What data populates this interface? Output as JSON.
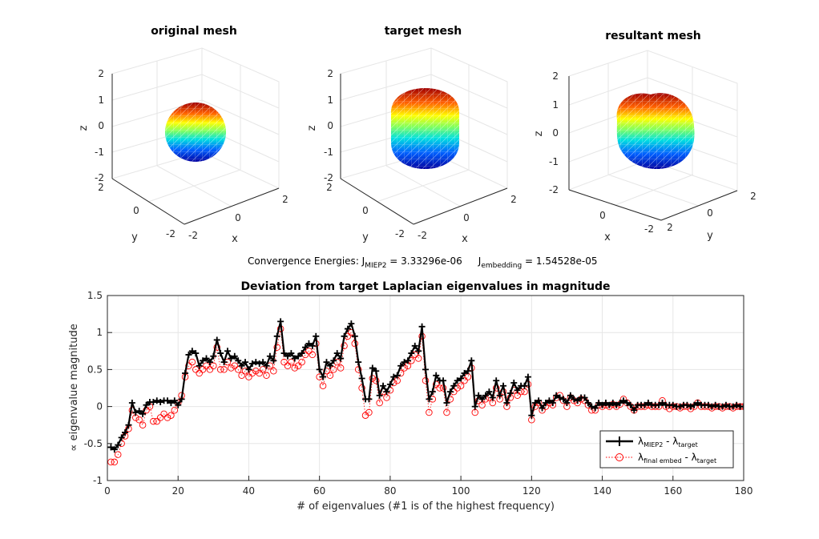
{
  "panels3d": [
    {
      "title": "original mesh",
      "z_ticks": [
        "2",
        "1",
        "0",
        "-1",
        "-2"
      ],
      "y_ticks": [
        "2",
        "0",
        "-2"
      ],
      "x_ticks": [
        "-2",
        "0",
        "2"
      ],
      "xlabel": "x",
      "ylabel": "y",
      "zlabel": "z"
    },
    {
      "title": "target mesh",
      "z_ticks": [
        "2",
        "1",
        "0",
        "-1",
        "-2"
      ],
      "y_ticks": [
        "2",
        "0",
        "-2"
      ],
      "x_ticks": [
        "-2",
        "0",
        "2"
      ],
      "xlabel": "x",
      "ylabel": "y",
      "zlabel": "z"
    },
    {
      "title": "resultant mesh",
      "z_ticks": [
        "2",
        "1",
        "0",
        "-1",
        "-2"
      ],
      "x_ticks": [
        "0",
        "2"
      ],
      "y_ticks": [
        "-2",
        "0",
        "2"
      ],
      "xlabel": "x",
      "ylabel": "y",
      "zlabel": "z"
    }
  ],
  "energy": {
    "prefix": "Convergence Energies: J",
    "sub1": "MIEP2",
    "val1": " = 3.33296e-06",
    "j2": "J",
    "sub2": "embedding",
    "val2": " = 1.54528e-05"
  },
  "chart_data": {
    "type": "line",
    "title": "Deviation from target Laplacian eigenvalues in magnitude",
    "xlabel": "# of eigenvalues (#1 is of the highest frequency)",
    "ylabel": "∝ eigenvalue magnitude",
    "xlim": [
      0,
      180
    ],
    "ylim": [
      -1,
      1.5
    ],
    "x_ticks": [
      0,
      20,
      40,
      60,
      80,
      100,
      120,
      140,
      160,
      180
    ],
    "y_ticks": [
      -1,
      -0.5,
      0,
      0.5,
      1,
      1.5
    ],
    "y_tick_labels": [
      "-1",
      "-0.5",
      "0",
      "0.5",
      "1",
      "1.5"
    ],
    "grid": true,
    "legend_position": "bottom-right",
    "legend": {
      "l1_sym": "λ",
      "l1_sub": "MIEP2",
      "l1_mid": " - λ",
      "l1_sub2": "target",
      "l2_sym": "λ",
      "l2_sub": "final embed",
      "l2_mid": " - λ",
      "l2_sub2": "target"
    },
    "series": [
      {
        "name": "MIEP2 - target",
        "color": "#000000",
        "values": [
          -0.55,
          -0.58,
          -0.52,
          -0.42,
          -0.35,
          -0.25,
          0.05,
          -0.08,
          -0.06,
          -0.1,
          0.02,
          0.06,
          0.06,
          0.08,
          0.06,
          0.08,
          0.08,
          0.05,
          0.08,
          0.02,
          0.1,
          0.45,
          0.7,
          0.75,
          0.72,
          0.55,
          0.62,
          0.65,
          0.6,
          0.68,
          0.9,
          0.72,
          0.6,
          0.75,
          0.65,
          0.68,
          0.62,
          0.55,
          0.6,
          0.5,
          0.58,
          0.6,
          0.58,
          0.6,
          0.55,
          0.68,
          0.62,
          0.95,
          1.15,
          0.72,
          0.68,
          0.72,
          0.65,
          0.68,
          0.72,
          0.8,
          0.85,
          0.82,
          0.95,
          0.5,
          0.4,
          0.6,
          0.55,
          0.62,
          0.72,
          0.65,
          0.95,
          1.05,
          1.12,
          0.95,
          0.6,
          0.38,
          0.1,
          0.1,
          0.52,
          0.48,
          0.15,
          0.28,
          0.2,
          0.3,
          0.4,
          0.42,
          0.55,
          0.6,
          0.62,
          0.72,
          0.82,
          0.75,
          1.08,
          0.5,
          0.1,
          0.2,
          0.42,
          0.35,
          0.35,
          0.05,
          0.2,
          0.28,
          0.35,
          0.38,
          0.45,
          0.48,
          0.62,
          0.0,
          0.15,
          0.1,
          0.15,
          0.2,
          0.12,
          0.35,
          0.15,
          0.28,
          0.05,
          0.18,
          0.32,
          0.22,
          0.28,
          0.28,
          0.4,
          -0.12,
          0.05,
          0.08,
          -0.02,
          0.05,
          0.08,
          0.05,
          0.15,
          0.12,
          0.1,
          0.05,
          0.15,
          0.1,
          0.08,
          0.12,
          0.12,
          0.05,
          0.0,
          -0.02,
          0.05,
          0.02,
          0.05,
          0.02,
          0.05,
          0.02,
          0.05,
          0.08,
          0.05,
          0.02,
          -0.05,
          0.02,
          0.02,
          0.02,
          0.05,
          0.02,
          0.02,
          0.02,
          0.05,
          0.02,
          0.02,
          0.02,
          0.0,
          0.0,
          0.02,
          0.02,
          0.0,
          0.02,
          0.05,
          0.02,
          0.02,
          0.02,
          0.0,
          0.02,
          0.0,
          0.0,
          0.02,
          0.0,
          0.0,
          0.02,
          0.0,
          0.0,
          0.0
        ]
      },
      {
        "name": "final embed - target",
        "color": "#ff0000",
        "values": [
          -0.75,
          -0.75,
          -0.65,
          -0.5,
          -0.4,
          -0.3,
          -0.05,
          -0.15,
          -0.18,
          -0.25,
          -0.05,
          0.0,
          -0.2,
          -0.2,
          -0.15,
          -0.1,
          -0.15,
          -0.12,
          -0.05,
          0.05,
          0.15,
          0.4,
          0.55,
          0.6,
          0.5,
          0.45,
          0.5,
          0.55,
          0.5,
          0.55,
          0.8,
          0.5,
          0.5,
          0.6,
          0.52,
          0.55,
          0.5,
          0.42,
          0.48,
          0.4,
          0.45,
          0.48,
          0.45,
          0.5,
          0.42,
          0.55,
          0.48,
          0.8,
          1.05,
          0.6,
          0.55,
          0.6,
          0.52,
          0.55,
          0.6,
          0.7,
          0.75,
          0.7,
          0.85,
          0.4,
          0.28,
          0.48,
          0.42,
          0.5,
          0.6,
          0.52,
          0.82,
          0.95,
          1.0,
          0.85,
          0.5,
          0.25,
          -0.12,
          -0.08,
          0.38,
          0.35,
          0.05,
          0.2,
          0.12,
          0.22,
          0.32,
          0.35,
          0.45,
          0.52,
          0.55,
          0.62,
          0.7,
          0.65,
          0.95,
          0.35,
          -0.08,
          0.1,
          0.3,
          0.25,
          0.25,
          -0.08,
          0.1,
          0.2,
          0.25,
          0.28,
          0.35,
          0.4,
          0.52,
          -0.08,
          0.08,
          0.02,
          0.1,
          0.12,
          0.05,
          0.25,
          0.1,
          0.2,
          0.0,
          0.12,
          0.22,
          0.15,
          0.2,
          0.2,
          0.3,
          -0.18,
          0.0,
          0.05,
          -0.05,
          0.0,
          0.05,
          0.02,
          0.12,
          0.15,
          0.08,
          0.0,
          0.12,
          0.08,
          0.05,
          0.1,
          0.08,
          0.02,
          -0.05,
          -0.05,
          0.02,
          0.0,
          0.02,
          0.0,
          0.03,
          0.0,
          0.03,
          0.1,
          0.05,
          0.0,
          -0.05,
          0.0,
          0.0,
          0.0,
          0.02,
          0.0,
          0.0,
          0.0,
          0.08,
          0.0,
          -0.03,
          0.0,
          0.0,
          -0.02,
          0.0,
          0.0,
          -0.03,
          0.0,
          0.05,
          0.0,
          0.0,
          0.0,
          -0.02,
          0.0,
          0.0,
          -0.02,
          0.0,
          0.0,
          -0.02,
          0.0,
          0.0,
          0.0,
          0.0
        ]
      }
    ]
  }
}
